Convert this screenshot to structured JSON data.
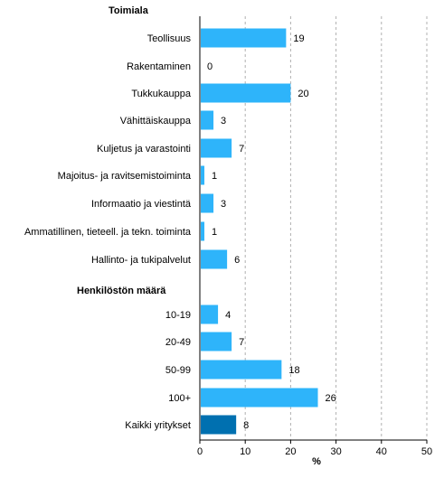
{
  "chart_data": {
    "type": "bar",
    "orientation": "horizontal",
    "xlabel": "%",
    "xlim": [
      0,
      50
    ],
    "xticks": [
      0,
      10,
      20,
      30,
      40,
      50
    ],
    "grid": "vertical-dashed",
    "groups": [
      {
        "heading": "Toimiala",
        "items": [
          {
            "label": "Teollisuus",
            "value": 19,
            "value_label": "19"
          },
          {
            "label": "Rakentaminen",
            "value": 0,
            "value_label": "0"
          },
          {
            "label": "Tukkukauppa",
            "value": 20,
            "value_label": "20"
          },
          {
            "label": "Vähittäiskauppa",
            "value": 3,
            "value_label": "3"
          },
          {
            "label": "Kuljetus ja varastointi",
            "value": 7,
            "value_label": "7"
          },
          {
            "label": "Majoitus- ja ravitsemistoiminta",
            "value": 1,
            "value_label": "1"
          },
          {
            "label": "Informaatio ja viestintä",
            "value": 3,
            "value_label": "3"
          },
          {
            "label": "Ammatillinen, tieteell. ja tekn. toiminta",
            "value": 1,
            "value_label": "1"
          },
          {
            "label": "Hallinto- ja tukipalvelut",
            "value": 6,
            "value_label": "6"
          }
        ]
      },
      {
        "heading": "Henkilöstön määrä",
        "items": [
          {
            "label": "10-19",
            "value": 4,
            "value_label": "4"
          },
          {
            "label": "20-49",
            "value": 7,
            "value_label": "7"
          },
          {
            "label": "50-99",
            "value": 18,
            "value_label": "18"
          },
          {
            "label": "100+",
            "value": 26,
            "value_label": "26"
          },
          {
            "label": "Kaikki yritykset",
            "value": 8,
            "value_label": "8",
            "highlight": true
          }
        ]
      }
    ],
    "colors": {
      "bar": "#2eb4fa",
      "highlight": "#0070b0",
      "grid": "#b0b0b0"
    }
  }
}
